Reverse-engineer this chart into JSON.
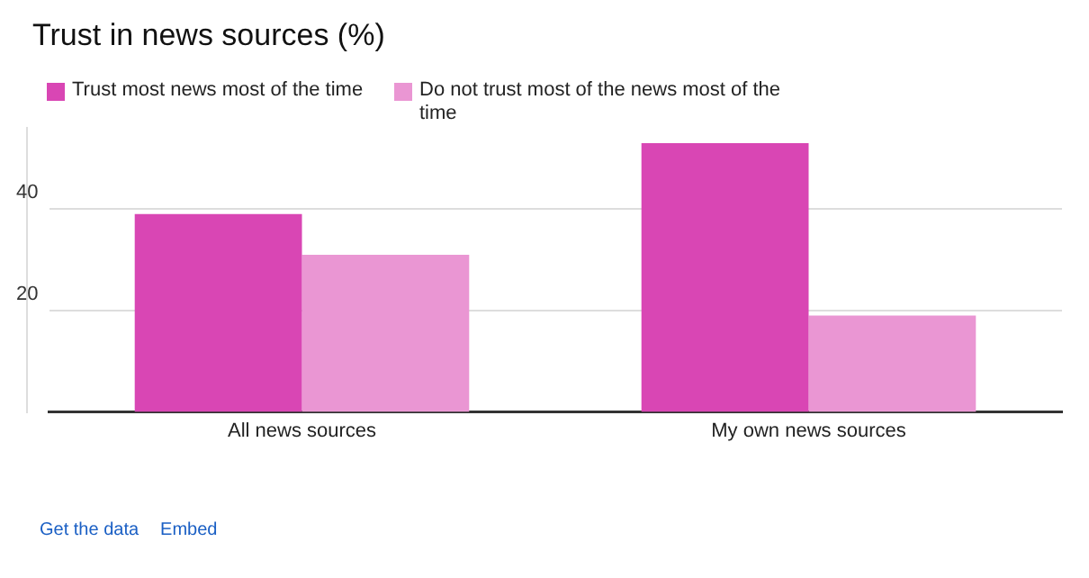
{
  "chart_data": {
    "type": "bar",
    "title": "Trust in news sources (%)",
    "categories": [
      "All news sources",
      "My own news sources"
    ],
    "series": [
      {
        "name": "Trust most news most of the time",
        "color": "#d946b4",
        "values": [
          39,
          53
        ]
      },
      {
        "name": "Do not trust most of the news most of the time",
        "color": "#ea96d3",
        "values": [
          31,
          19
        ]
      }
    ],
    "ylim": [
      0,
      56
    ],
    "yticks": [
      20,
      40
    ],
    "grid": "y",
    "legend": "top",
    "annotations": [
      "Get the data",
      "Embed"
    ]
  }
}
